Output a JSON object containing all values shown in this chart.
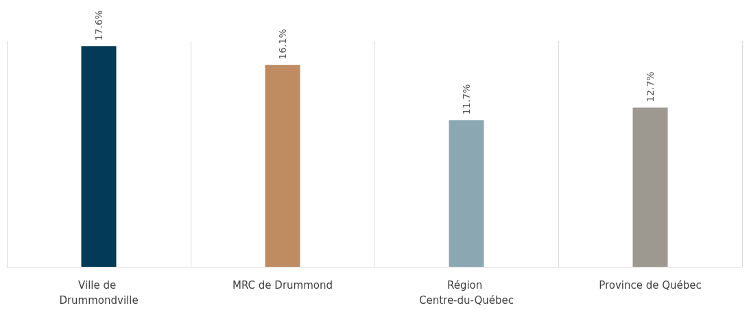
{
  "chart_data": {
    "type": "bar",
    "categories": [
      "Ville de Drummondville",
      "MRC de Drummond",
      "Région Centre-du-Québec",
      "Province de Québec"
    ],
    "values": [
      17.6,
      16.1,
      11.7,
      12.7
    ],
    "colors": [
      "#023a58",
      "#bf8c62",
      "#8ba8b2",
      "#9d9991"
    ],
    "value_labels": [
      "17.6%",
      "16.1%",
      "11.7%",
      "12.7%"
    ],
    "grid": "x"
  }
}
